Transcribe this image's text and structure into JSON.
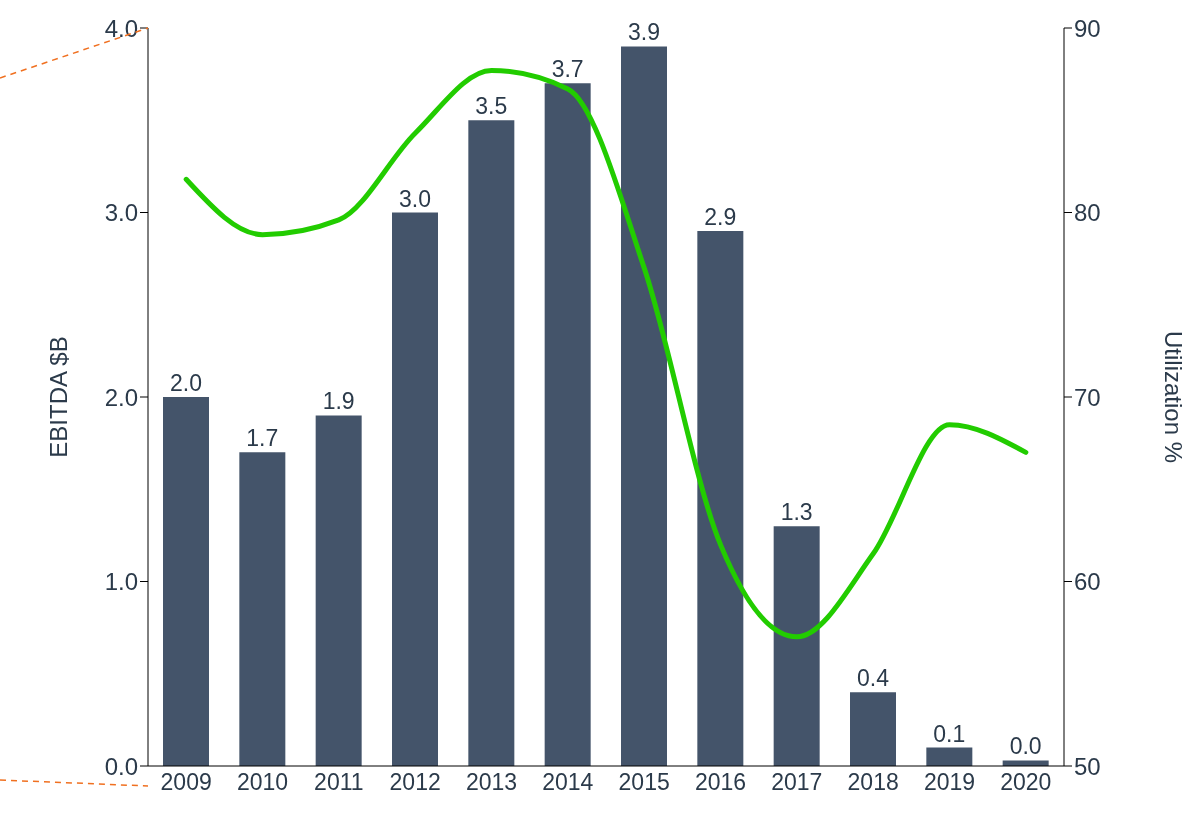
{
  "chart_data": {
    "type": "bar",
    "categories": [
      "2009",
      "2010",
      "2011",
      "2012",
      "2013",
      "2014",
      "2015",
      "2016",
      "2017",
      "2018",
      "2019",
      "2020"
    ],
    "series": [
      {
        "color": "#44546a",
        "values": [
          2.0,
          1.7,
          1.9,
          3.0,
          3.5,
          3.7,
          3.9,
          2.9,
          1.3,
          0.4,
          0.1,
          0.03
        ],
        "value_labels": [
          "2.0",
          "1.7",
          "1.9",
          "3.0",
          "3.5",
          "3.7",
          "3.9",
          "2.9",
          "1.3",
          "0.4",
          "0.1",
          "0.0"
        ]
      },
      {
        "type": "line",
        "axis": "y2",
        "color": "#22cc00",
        "values": [
          81.8,
          78.8,
          79.6,
          84.3,
          87.7,
          86.7,
          77,
          62,
          57,
          61.5,
          68.5,
          67
        ]
      }
    ],
    "ylabel": "EBITDA $B",
    "y2label": "Utilization %",
    "ylim": [
      0,
      4
    ],
    "yticks": [
      {
        "value": 0,
        "label": "0.0"
      },
      {
        "value": 1,
        "label": "1.0"
      },
      {
        "value": 2,
        "label": "2.0"
      },
      {
        "value": 3,
        "label": "3.0"
      },
      {
        "value": 4,
        "label": "4.0"
      }
    ],
    "y2lim": [
      50,
      90
    ],
    "y2ticks": [
      50,
      60,
      70,
      80,
      90
    ],
    "grid": false,
    "legend": false,
    "marker": "none",
    "line_style": "solid"
  }
}
